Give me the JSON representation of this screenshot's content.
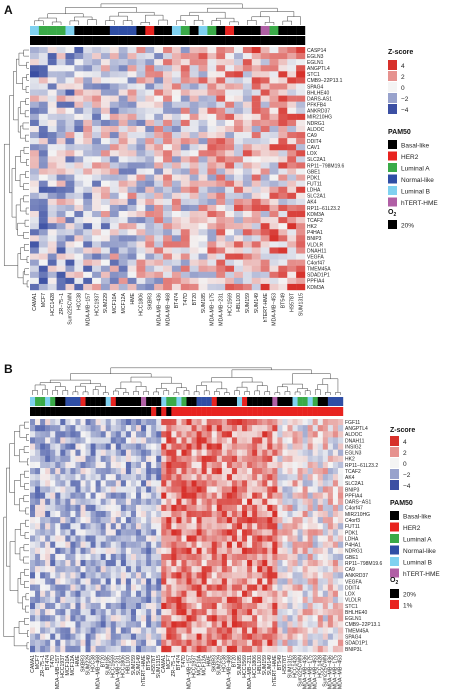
{
  "colors": {
    "zscore_high": "#d7302a",
    "zscore_mid": "#f4f4f4",
    "zscore_low": "#3b4fa3",
    "basal_like": "#000000",
    "her2": "#e8231f",
    "luminal_a": "#3aaa48",
    "normal_like": "#2f4ea5",
    "luminal_b": "#7fd1f0",
    "htert_hme": "#b05fa5",
    "o2_20": "#000000",
    "o2_1": "#e8231f",
    "dendrogram": "#444444"
  },
  "legend": {
    "zscore_title": "Z-score",
    "zscore_ticks_a": [
      "4",
      "2",
      "0",
      "−2",
      "−4"
    ],
    "zscore_ticks_b": [
      "4",
      "2",
      "0",
      "−2",
      "−4"
    ],
    "pam50_title": "PAM50",
    "pam50_items": [
      "Basal-like",
      "HER2",
      "Luminal A",
      "Normal-like",
      "Luminal B",
      "hTERT-HME"
    ],
    "o2_title": "O",
    "o2_sub": "2",
    "o2_items_a": [
      "20%"
    ],
    "o2_items_b": [
      "20%",
      "1%"
    ]
  },
  "chart_data": [
    {
      "panel": "A",
      "type": "heatmap",
      "rows": [
        "CASP14",
        "EGLN3",
        "EGLN1",
        "ANGPTL4",
        "STC1",
        "CMB9−22P13.1",
        "SPAG4",
        "BHLHE40",
        "DARS-AS1",
        "PFKFB4",
        "ANKRD37",
        "MIR210HG",
        "NDRG1",
        "ALDOC",
        "CA9",
        "DDIT4",
        "CAV1",
        "LOX",
        "SLC2A1",
        "RP11−798M19.6",
        "GBE1",
        "PDK1",
        "FUT11",
        "LDHA",
        "SLC2A1",
        "AK4",
        "RP11−61L23.2",
        "KDM3A",
        "TCAF2",
        "HK2",
        "P4HA1",
        "BNIP3",
        "VLDLR",
        "DNAH11",
        "VEGFA",
        "C4orf47",
        "TMEM45A",
        "SDAD1P1",
        "PPFIA4",
        "KDM3A"
      ],
      "columns": [
        "CAMA1",
        "MCF7",
        "HCC1428",
        "ZR−75−1",
        "Sum225CWN",
        "HCC38",
        "MDA-MB−157",
        "HCC1937",
        "SUM229",
        "MCF10A",
        "MCF12A",
        "HME",
        "HCC1806",
        "SKBR3",
        "MDA-MB−436",
        "MDA-MB−468",
        "BT474",
        "T47D",
        "BT20",
        "SUM185",
        "MDA-MB−175",
        "MDA-MB−231",
        "HCC1569",
        "HBL100",
        "SUM159",
        "SUM149",
        "hTERT-HME",
        "MDA-MB−453",
        "BT549",
        "HS578T",
        "SUM1315"
      ],
      "column_pam50": [
        "Luminal B",
        "Luminal A",
        "Luminal A",
        "Luminal A",
        "Luminal B",
        "Basal-like",
        "Basal-like",
        "Basal-like",
        "Basal-like",
        "Normal-like",
        "Normal-like",
        "Normal-like",
        "Basal-like",
        "HER2",
        "Basal-like",
        "Basal-like",
        "Luminal B",
        "Luminal A",
        "Basal-like",
        "Luminal B",
        "Luminal A",
        "Basal-like",
        "HER2",
        "Basal-like",
        "Basal-like",
        "Basal-like",
        "hTERT-HME",
        "Luminal A",
        "Basal-like",
        "Basal-like",
        "Basal-like"
      ],
      "column_o2": [
        "20%",
        "20%",
        "20%",
        "20%",
        "20%",
        "20%",
        "20%",
        "20%",
        "20%",
        "20%",
        "20%",
        "20%",
        "20%",
        "20%",
        "20%",
        "20%",
        "20%",
        "20%",
        "20%",
        "20%",
        "20%",
        "20%",
        "20%",
        "20%",
        "20%",
        "20%",
        "20%",
        "20%",
        "20%",
        "20%",
        "20%"
      ],
      "zscore_range": [
        -4,
        4
      ]
    },
    {
      "panel": "B",
      "type": "heatmap",
      "rows": [
        "FGF11",
        "ANGPTL4",
        "ALDOC",
        "DNAH11",
        "INSIG2",
        "EGLN3",
        "HK2",
        "RP11−61L23.2",
        "TCAF2",
        "AK4",
        "SLC2A1",
        "BNIP3",
        "PPFIA4",
        "DARS−AS1",
        "C4orf47",
        "MIR210HG",
        "C4orf3",
        "FUT11",
        "PDK1",
        "LDHA",
        "P4HA1",
        "NDRG1",
        "GBE1",
        "RP11−798M19.6",
        "CA9",
        "ANKRD37",
        "VEGFA",
        "DDIT4",
        "LOX",
        "VLDLR",
        "STC1",
        "BHLHE40",
        "EGLN1",
        "CMB9−22P13.1",
        "TMEM45A",
        "SPAG4",
        "SDAD1P1",
        "BNIP3L"
      ],
      "column_count": 62,
      "column_labels": [
        "CAMA1",
        "MCF7",
        "ZR−75−1",
        "BT474",
        "T47D",
        "MDA−MB−157",
        "HCC1937",
        "MCF10A",
        "MCF12A",
        "HME",
        "SKBR3",
        "SUM229",
        "HCC38",
        "MDA−MB−468",
        "BT20",
        "SUM185",
        "HCC1569",
        "MDA−MB−231",
        "HCC1806",
        "HBL100",
        "SUM159",
        "SUM149",
        "hTERT−HME",
        "BT549",
        "HS578T",
        "SUM1315",
        "CAMA1",
        "MCF7",
        "ZR−75−1",
        "BT474",
        "T47D",
        "MDA−MB−157",
        "HCC1937",
        "MCF10A",
        "MCF12A",
        "HME",
        "SKBR3",
        "SUM229",
        "HCC38",
        "MDA−MB−468",
        "BT20",
        "SUM185",
        "HCC1569",
        "MDA−MB−231",
        "HCC1806",
        "HBL100",
        "SUM159",
        "SUM149",
        "hTERT−HME",
        "BT549",
        "HS578T",
        "SUM1315",
        "HCC1428",
        "Sum225CWN",
        "MDA−MB−436",
        "MDA−MB−175",
        "MDA−MB−453",
        "HCC1428",
        "Sum225CWN",
        "MDA−MB−436",
        "MDA−MB−175",
        "MDA−MB−453"
      ],
      "o2_pattern": "left group 20%, right group mostly 1%",
      "zscore_range": [
        -4,
        4
      ]
    }
  ]
}
